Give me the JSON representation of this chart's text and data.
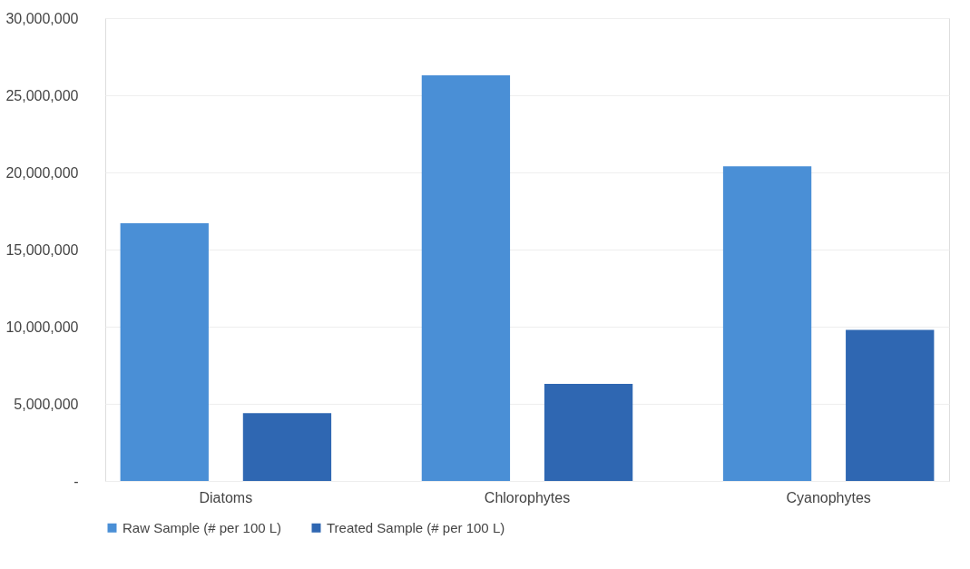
{
  "chart_data": {
    "type": "bar",
    "categories": [
      "Diatoms",
      "Chlorophytes",
      "Cyanophytes"
    ],
    "series": [
      {
        "name": "Raw Sample (# per 100 L)",
        "color": "#4a8fd6",
        "values": [
          16700000,
          26300000,
          20400000
        ]
      },
      {
        "name": "Treated Sample (# per 100 L)",
        "color": "#2f67b2",
        "values": [
          4400000,
          6300000,
          9800000
        ]
      }
    ],
    "ylim": [
      0,
      30000000
    ],
    "yticks": [
      {
        "value": 0,
        "label": "-"
      },
      {
        "value": 5000000,
        "label": "5,000,000"
      },
      {
        "value": 10000000,
        "label": "10,000,000"
      },
      {
        "value": 15000000,
        "label": "15,000,000"
      },
      {
        "value": 20000000,
        "label": "20,000,000"
      },
      {
        "value": 25000000,
        "label": "25,000,000"
      },
      {
        "value": 30000000,
        "label": "30,000,000"
      }
    ],
    "grid": "y",
    "legend": "bottom"
  }
}
